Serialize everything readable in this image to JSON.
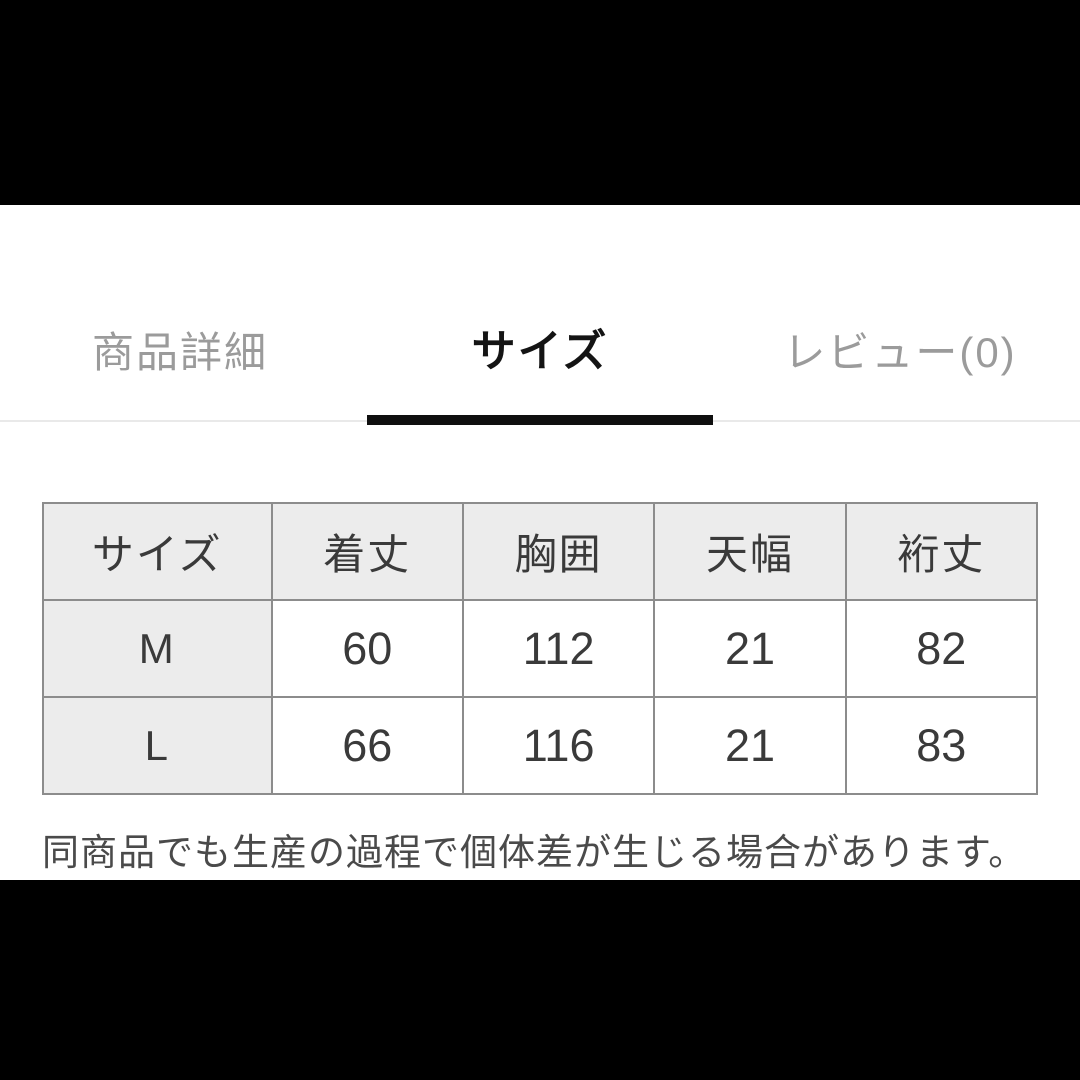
{
  "tabs": {
    "items": [
      {
        "label": "商品詳細",
        "active": false
      },
      {
        "label": "サイズ",
        "active": true
      },
      {
        "label": "レビュー(0)",
        "active": false
      }
    ]
  },
  "size_table": {
    "columns": [
      "サイズ",
      "着丈",
      "胸囲",
      "天幅",
      "裄丈"
    ],
    "rows": [
      {
        "size": "M",
        "values": [
          "60",
          "112",
          "21",
          "82"
        ]
      },
      {
        "size": "L",
        "values": [
          "66",
          "116",
          "21",
          "83"
        ]
      }
    ]
  },
  "note": "同商品でも生産の過程で個体差が生じる場合があります。",
  "colors": {
    "active_tab_text": "#141414",
    "inactive_tab_text": "#9b9b9b",
    "active_tab_underline": "#0f0f0f",
    "tabbar_divider": "#e9e9e9",
    "table_border": "#8c8c8c",
    "table_header_bg": "#ececec",
    "cell_text": "#3a3a3a",
    "note_text": "#4a4a4a",
    "letterbox": "#000000",
    "content_bg": "#ffffff"
  }
}
